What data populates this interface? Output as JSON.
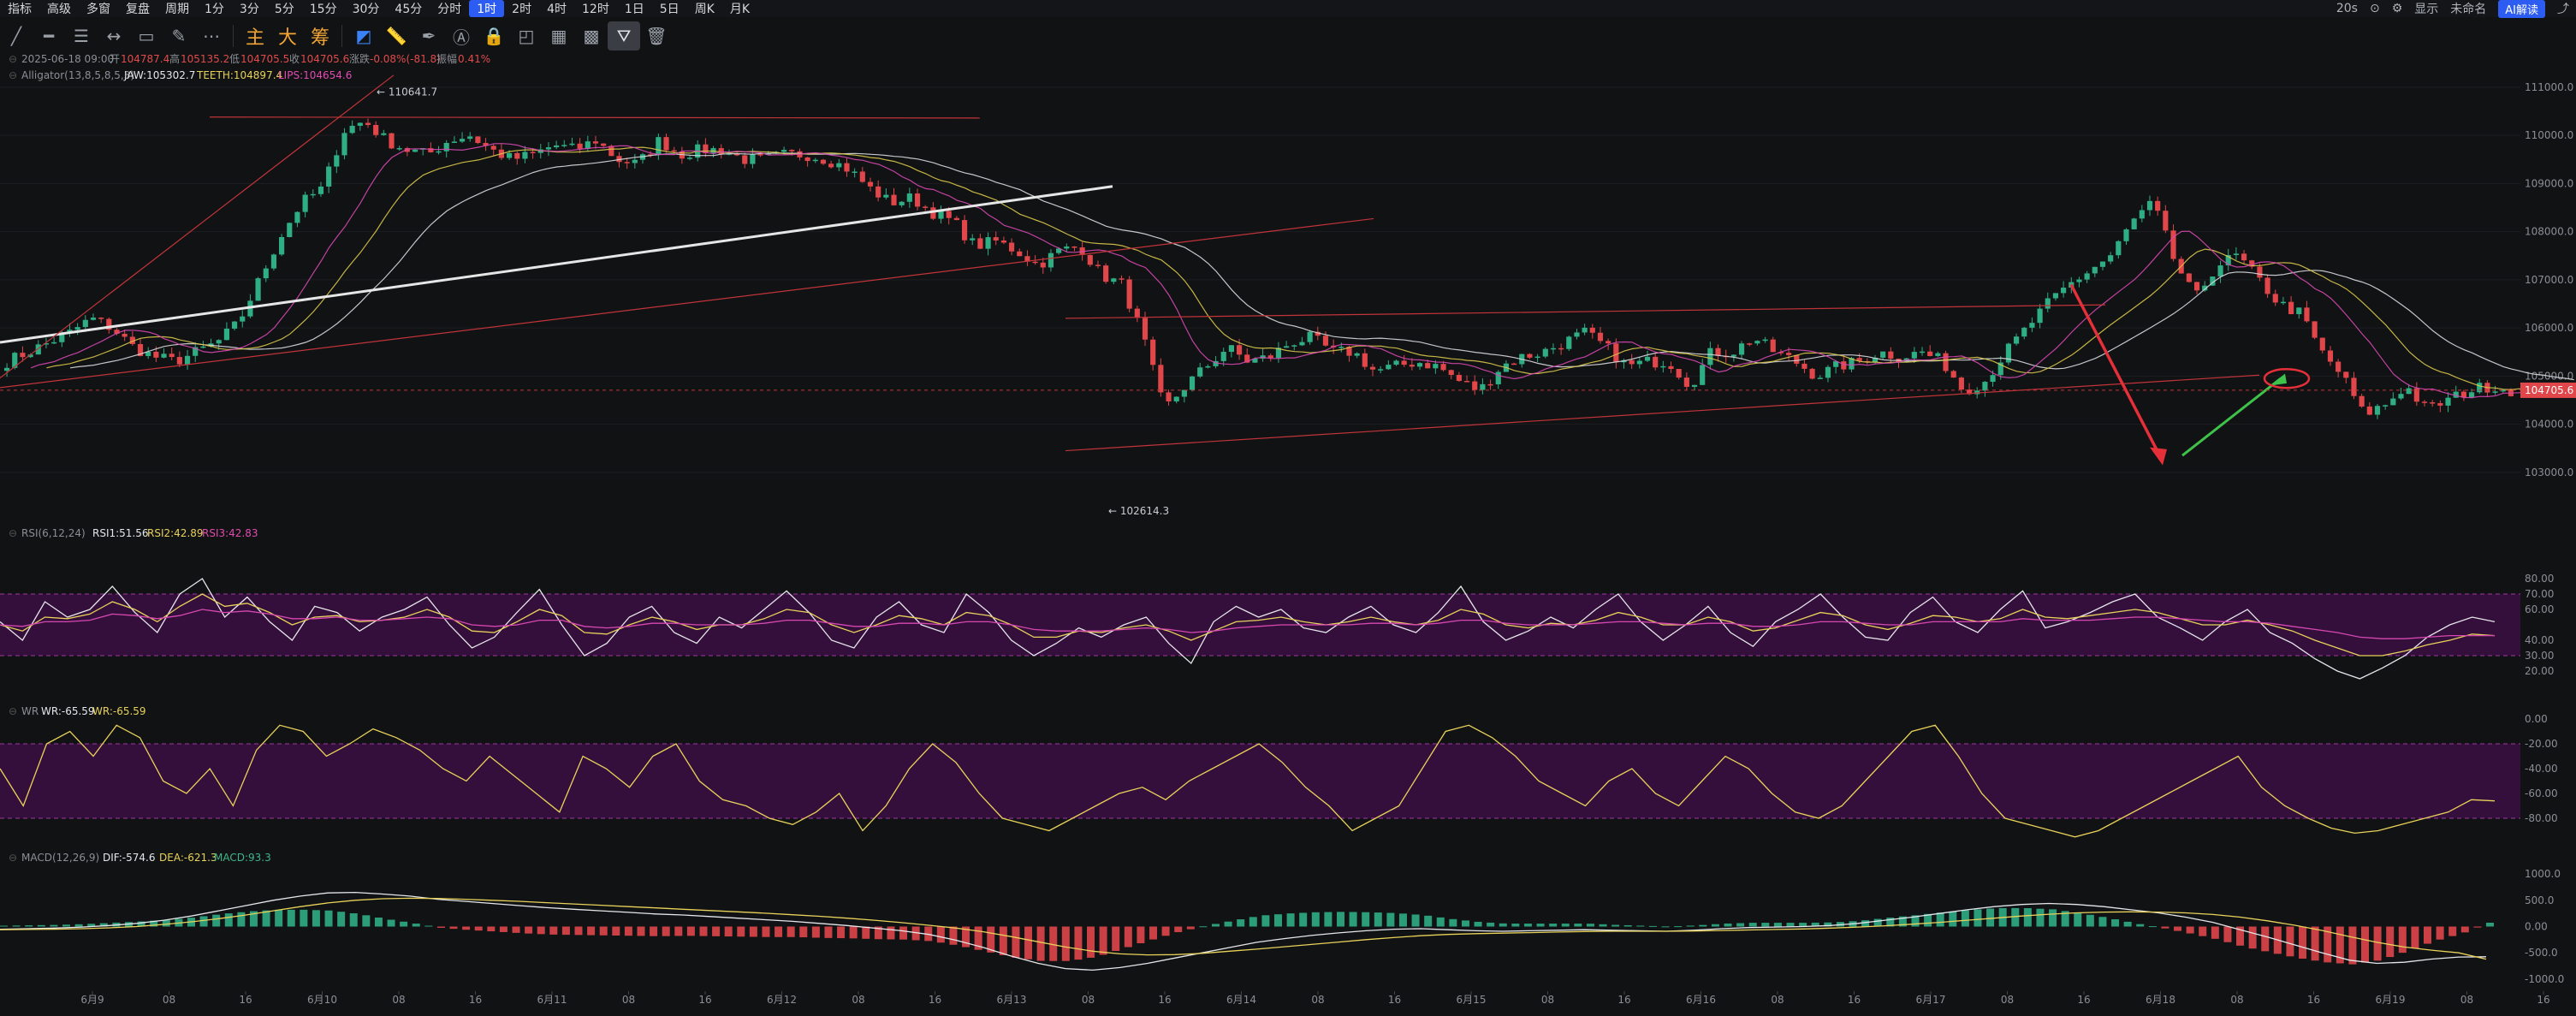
{
  "menu": {
    "items": [
      "指标",
      "高级",
      "多窗",
      "复盘",
      "周期",
      "1分",
      "3分",
      "5分",
      "15分",
      "30分",
      "45分",
      "分时",
      "1时",
      "2时",
      "4时",
      "12时",
      "1日",
      "5日",
      "周K",
      "月K"
    ],
    "active_index": 12,
    "right": [
      "20s",
      "显示",
      "未命名",
      "AI解读"
    ]
  },
  "toolbar": {
    "drawing_tools": [
      "trend-line-icon",
      "horizontal-line-icon",
      "parallel-channel-icon",
      "ray-icon",
      "rectangle-icon",
      "brush-icon",
      "more-icon"
    ],
    "pattern_tools": [
      "主",
      "大",
      "筹"
    ],
    "other_tools": [
      "magnet-icon",
      "ruler-icon",
      "pen-icon",
      "text-icon",
      "lock-icon",
      "eye-icon",
      "layers-icon",
      "image-icon",
      "filter-icon",
      "trash-icon"
    ]
  },
  "legend": {
    "ohlc_prefix": "2025-06-18 09:00",
    "open_label": "开",
    "open_val": "104787.4",
    "high_label": "高",
    "high_val": "105135.2",
    "low_label": "低",
    "low_val": "104705.5",
    "close_label": "收",
    "close_val": "104705.6",
    "change_label": "涨跌",
    "change_val": "-0.08%(-81.8)",
    "amp_label": "振幅",
    "amp_val": "0.41%",
    "alligator": "Alligator(13,8,5,8,5,3)",
    "jaw": "JAW:105302.7",
    "teeth": "TEETH:104897.4",
    "lips": "LIPS:104654.6",
    "rsi": "RSI(6,12,24)",
    "rsi1": "RSI1:51.56",
    "rsi2": "RSI2:42.89",
    "rsi3": "RSI3:42.83",
    "wr": "WR",
    "wr1": "WR:-65.59",
    "wr2": "WR:-65.59",
    "macd": "MACD(12,26,9)",
    "dif": "DIF:-574.6",
    "dea": "DEA:-621.3",
    "macdv": "MACD:93.3"
  },
  "chart_data": [
    {
      "type": "candlestick",
      "title": "",
      "interval": "1时",
      "ylim": [
        102500,
        111300
      ],
      "yticks": [
        "111000.0",
        "110000.0",
        "109000.0",
        "108000.0",
        "107000.0",
        "106000.0",
        "105000.0",
        "104000.0",
        "103000.0"
      ],
      "last_price": "104705.6",
      "high_label": "110641.7",
      "low_label": "102614.3",
      "xticks": [
        "6月9",
        "08",
        "16",
        "6月10",
        "08",
        "16",
        "6月11",
        "08",
        "16",
        "6月12",
        "08",
        "16",
        "6月13",
        "08",
        "16",
        "6月14",
        "08",
        "16",
        "6月15",
        "08",
        "16",
        "6月16",
        "08",
        "16",
        "6月17",
        "08",
        "16",
        "6月18",
        "08",
        "16",
        "6月19",
        "08",
        "16"
      ],
      "close_path": [
        105300,
        105500,
        105700,
        105900,
        106200,
        106000,
        105600,
        105400,
        105300,
        105500,
        105700,
        106100,
        107000,
        107900,
        108600,
        108900,
        110100,
        110300,
        109900,
        109700,
        109600,
        109900,
        110000,
        109700,
        109500,
        109600,
        109800,
        109700,
        109900,
        109500,
        109400,
        109900,
        109600,
        109700,
        109700,
        109500,
        109500,
        109600,
        109600,
        109500,
        109300,
        108900,
        108600,
        108700,
        108400,
        108200,
        107700,
        107800,
        107600,
        107300,
        107600,
        107700,
        107100,
        106900,
        105800,
        104300,
        104800,
        105200,
        105600,
        105300,
        105400,
        105700,
        105800,
        105500,
        105500,
        105100,
        105200,
        105300,
        105200,
        104900,
        104700,
        105200,
        105400,
        105500,
        105700,
        105900,
        105600,
        105200,
        105300,
        105300,
        104800,
        105500,
        105500,
        105800,
        105500,
        105300,
        105000,
        105200,
        105300,
        105500,
        105400,
        105500,
        105300,
        104700,
        104900,
        105500,
        106000,
        106500,
        106900,
        107200,
        107500,
        108200,
        108600,
        107400,
        106600,
        107300,
        107500,
        107000,
        106500,
        106300,
        105500,
        105000,
        104200,
        104400,
        104800,
        104300,
        104500,
        104700,
        104800,
        104706
      ],
      "series": [
        {
          "name": "JAW"
        },
        {
          "name": "TEETH"
        },
        {
          "name": "LIPS"
        }
      ]
    },
    {
      "type": "line",
      "title": "RSI(6,12,24)",
      "ylim": [
        0,
        100
      ],
      "yticks": [
        "80.00",
        "70.00",
        "60.00",
        "40.00",
        "30.00",
        "20.00"
      ],
      "band": [
        30,
        70
      ],
      "series": [
        {
          "name": "RSI1",
          "values": [
            52,
            40,
            65,
            55,
            60,
            75,
            58,
            45,
            70,
            80,
            55,
            68,
            52,
            40,
            62,
            58,
            46,
            55,
            60,
            68,
            50,
            35,
            42,
            58,
            73,
            50,
            30,
            38,
            55,
            62,
            45,
            38,
            55,
            48,
            60,
            72,
            58,
            40,
            35,
            55,
            65,
            50,
            45,
            70,
            58,
            40,
            30,
            38,
            48,
            42,
            50,
            55,
            38,
            25,
            52,
            62,
            55,
            60,
            48,
            45,
            55,
            62,
            50,
            45,
            58,
            75,
            52,
            40,
            46,
            55,
            48,
            60,
            70,
            52,
            40,
            50,
            62,
            45,
            36,
            52,
            60,
            70,
            55,
            42,
            40,
            58,
            68,
            52,
            45,
            60,
            72,
            48,
            52,
            58,
            65,
            70,
            55,
            48,
            40,
            52,
            60,
            45,
            38,
            28,
            20,
            15,
            22,
            30,
            42,
            50,
            55,
            52
          ]
        },
        {
          "name": "RSI2",
          "values": [
            50,
            46,
            55,
            54,
            57,
            65,
            60,
            52,
            62,
            70,
            62,
            64,
            58,
            50,
            55,
            56,
            52,
            53,
            55,
            60,
            55,
            46,
            45,
            52,
            60,
            56,
            45,
            44,
            50,
            55,
            52,
            47,
            50,
            50,
            54,
            60,
            58,
            50,
            45,
            50,
            56,
            54,
            50,
            58,
            56,
            50,
            42,
            42,
            46,
            45,
            48,
            50,
            46,
            40,
            46,
            52,
            53,
            55,
            52,
            50,
            52,
            55,
            52,
            50,
            53,
            60,
            57,
            50,
            48,
            51,
            50,
            53,
            58,
            55,
            50,
            50,
            55,
            52,
            46,
            48,
            53,
            58,
            56,
            50,
            47,
            51,
            56,
            55,
            52,
            54,
            60,
            55,
            54,
            56,
            58,
            60,
            58,
            54,
            50,
            50,
            53,
            50,
            46,
            40,
            35,
            30,
            30,
            33,
            37,
            40,
            44,
            43
          ]
        },
        {
          "name": "RSI3",
          "values": [
            50,
            49,
            52,
            52,
            53,
            57,
            56,
            54,
            56,
            60,
            58,
            59,
            57,
            54,
            54,
            55,
            53,
            53,
            54,
            55,
            54,
            50,
            49,
            50,
            53,
            53,
            49,
            48,
            49,
            51,
            51,
            50,
            50,
            50,
            51,
            53,
            53,
            51,
            49,
            49,
            51,
            51,
            50,
            52,
            52,
            50,
            47,
            46,
            46,
            46,
            47,
            48,
            47,
            45,
            46,
            48,
            49,
            50,
            50,
            50,
            50,
            51,
            51,
            50,
            51,
            53,
            53,
            51,
            50,
            50,
            50,
            51,
            52,
            52,
            51,
            50,
            51,
            51,
            49,
            49,
            50,
            52,
            52,
            51,
            50,
            50,
            52,
            52,
            52,
            52,
            54,
            53,
            53,
            53,
            54,
            55,
            55,
            54,
            53,
            52,
            52,
            51,
            49,
            47,
            45,
            42,
            41,
            41,
            42,
            43,
            43,
            43
          ]
        }
      ]
    },
    {
      "type": "line",
      "title": "WR",
      "ylim": [
        -100,
        0
      ],
      "yticks": [
        "0.00",
        "-20.00",
        "-40.00",
        "-60.00",
        "-80.00"
      ],
      "band": [
        -80,
        -20
      ],
      "series": [
        {
          "name": "WR",
          "values": [
            -40,
            -70,
            -20,
            -10,
            -30,
            -5,
            -15,
            -50,
            -60,
            -40,
            -70,
            -25,
            -5,
            -10,
            -30,
            -20,
            -8,
            -15,
            -25,
            -40,
            -50,
            -30,
            -45,
            -60,
            -75,
            -30,
            -40,
            -55,
            -30,
            -20,
            -50,
            -65,
            -70,
            -80,
            -85,
            -75,
            -60,
            -90,
            -70,
            -40,
            -20,
            -35,
            -60,
            -80,
            -85,
            -90,
            -80,
            -70,
            -60,
            -55,
            -65,
            -50,
            -40,
            -30,
            -20,
            -35,
            -55,
            -70,
            -90,
            -80,
            -70,
            -40,
            -10,
            -5,
            -15,
            -30,
            -50,
            -60,
            -70,
            -50,
            -40,
            -60,
            -70,
            -50,
            -30,
            -40,
            -60,
            -75,
            -80,
            -70,
            -50,
            -30,
            -10,
            -5,
            -30,
            -60,
            -80,
            -85,
            -90,
            -95,
            -90,
            -80,
            -70,
            -60,
            -50,
            -40,
            -30,
            -55,
            -70,
            -80,
            -88,
            -92,
            -90,
            -85,
            -80,
            -75,
            -65,
            -66
          ]
        }
      ]
    },
    {
      "type": "bar",
      "title": "MACD(12,26,9)",
      "ylim": [
        -1100,
        1100
      ],
      "yticks": [
        "1000.0",
        "500.0",
        "0.00",
        "-500.0",
        "-1000.0"
      ],
      "series": [
        {
          "name": "DIF",
          "values": [
            -50,
            -40,
            -30,
            -10,
            20,
            60,
            120,
            200,
            300,
            400,
            500,
            580,
            640,
            650,
            620,
            580,
            520,
            480,
            440,
            400,
            360,
            330,
            300,
            270,
            240,
            220,
            190,
            160,
            130,
            100,
            60,
            20,
            -30,
            -80,
            -150,
            -260,
            -400,
            -560,
            -700,
            -800,
            -830,
            -780,
            -700,
            -600,
            -500,
            -400,
            -300,
            -230,
            -170,
            -120,
            -80,
            -50,
            -40,
            -60,
            -80,
            -90,
            -80,
            -70,
            -60,
            -70,
            -80,
            -90,
            -70,
            -40,
            -20,
            -10,
            0,
            20,
            60,
            120,
            180,
            250,
            320,
            380,
            420,
            440,
            420,
            380,
            320,
            260,
            180,
            80,
            -60,
            -200,
            -350,
            -500,
            -640,
            -700,
            -680,
            -620,
            -580,
            -575
          ]
        },
        {
          "name": "DEA",
          "values": [
            -60,
            -55,
            -50,
            -40,
            -25,
            0,
            40,
            90,
            150,
            220,
            300,
            380,
            450,
            500,
            530,
            540,
            535,
            520,
            500,
            480,
            455,
            430,
            405,
            380,
            355,
            330,
            305,
            280,
            255,
            225,
            195,
            160,
            120,
            75,
            25,
            -30,
            -100,
            -190,
            -290,
            -390,
            -470,
            -520,
            -540,
            -535,
            -510,
            -470,
            -430,
            -385,
            -340,
            -295,
            -250,
            -210,
            -175,
            -150,
            -135,
            -125,
            -115,
            -105,
            -95,
            -90,
            -90,
            -90,
            -85,
            -75,
            -65,
            -55,
            -45,
            -30,
            -10,
            15,
            45,
            80,
            120,
            160,
            200,
            235,
            260,
            275,
            280,
            275,
            260,
            230,
            180,
            110,
            25,
            -75,
            -190,
            -300,
            -390,
            -450,
            -500,
            -621
          ]
        }
      ]
    }
  ]
}
